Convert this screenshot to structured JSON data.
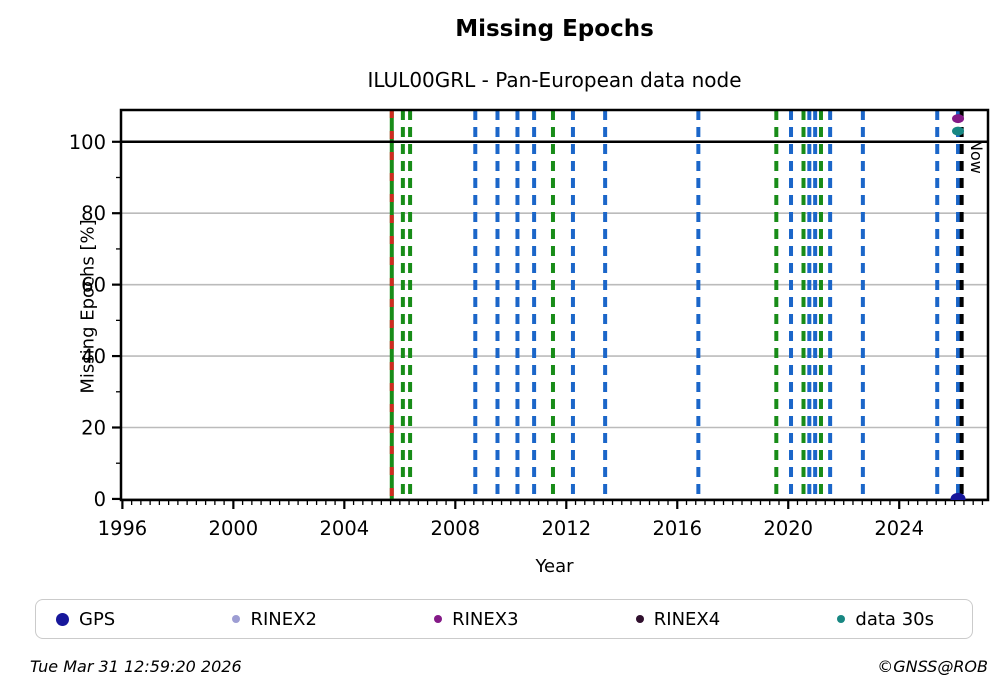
{
  "title": "Missing Epochs",
  "subtitle": "ILUL00GRL - Pan-European data node",
  "now_label": "Now",
  "footer": {
    "timestamp": "Tue Mar 31 12:59:20 2026",
    "credit": "©GNSS@ROB"
  },
  "legend": {
    "items": [
      {
        "label": "GPS",
        "color": "#17179b",
        "dot_size": 13
      },
      {
        "label": "RINEX2",
        "color": "#9d9dd3",
        "dot_size": 8
      },
      {
        "label": "RINEX3",
        "color": "#841a87",
        "dot_size": 8
      },
      {
        "label": "RINEX4",
        "color": "#30102e",
        "dot_size": 8
      },
      {
        "label": "data 30s",
        "color": "#188782",
        "dot_size": 8
      }
    ]
  },
  "chart_data": {
    "type": "scatter",
    "title": "Missing Epochs",
    "subtitle": "ILUL00GRL - Pan-European data node",
    "xlabel": "Year",
    "ylabel": "Missing Epochs [%]",
    "xlim": [
      1995.95,
      2027.2
    ],
    "ylim": [
      -0.3,
      108.9
    ],
    "xticks": [
      1996,
      2000,
      2004,
      2008,
      2012,
      2016,
      2020,
      2024
    ],
    "yticks": [
      0,
      20,
      40,
      60,
      80,
      100
    ],
    "x_minor_step": 0.33333,
    "y_minor_ticks": [
      10,
      30,
      50,
      70,
      90
    ],
    "grid_y": [
      0,
      20,
      40,
      60,
      80
    ],
    "grid_color": "#bbbbbb",
    "hline": {
      "y": 100,
      "color": "#000000"
    },
    "now_line": {
      "x": 2026.25,
      "label": "Now",
      "color": "#000000",
      "style": "dashed"
    },
    "vlines": [
      {
        "x": 2005.71,
        "color": "#188c18",
        "style": "solid",
        "overlay_color": "#cf2b20",
        "overlay_style": "dashed"
      },
      {
        "x": 2006.11,
        "color": "#188c18",
        "style": "dashed"
      },
      {
        "x": 2006.37,
        "color": "#188c18",
        "style": "dashed"
      },
      {
        "x": 2008.72,
        "color": "#1b66c9",
        "style": "dashed"
      },
      {
        "x": 2009.52,
        "color": "#1b66c9",
        "style": "dashed"
      },
      {
        "x": 2010.24,
        "color": "#1b66c9",
        "style": "dashed"
      },
      {
        "x": 2010.84,
        "color": "#1b66c9",
        "style": "dashed"
      },
      {
        "x": 2011.52,
        "color": "#188c18",
        "style": "dashed"
      },
      {
        "x": 2012.24,
        "color": "#1b66c9",
        "style": "dashed"
      },
      {
        "x": 2013.4,
        "color": "#1b66c9",
        "style": "dashed"
      },
      {
        "x": 2016.76,
        "color": "#1b66c9",
        "style": "dashed"
      },
      {
        "x": 2019.57,
        "color": "#188c18",
        "style": "dashed"
      },
      {
        "x": 2020.1,
        "color": "#1b66c9",
        "style": "dashed"
      },
      {
        "x": 2020.55,
        "color": "#188c18",
        "style": "dashed"
      },
      {
        "x": 2020.76,
        "color": "#1b66c9",
        "style": "dashed"
      },
      {
        "x": 2020.97,
        "color": "#1b66c9",
        "style": "dashed"
      },
      {
        "x": 2021.18,
        "color": "#188c18",
        "style": "dashed"
      },
      {
        "x": 2021.51,
        "color": "#1b66c9",
        "style": "dashed"
      },
      {
        "x": 2022.69,
        "color": "#1b66c9",
        "style": "dashed"
      },
      {
        "x": 2025.37,
        "color": "#1b66c9",
        "style": "dashed"
      },
      {
        "x": 2026.12,
        "color": "#1b66c9",
        "style": "dashed"
      }
    ],
    "points": [
      {
        "x": 2026.12,
        "y": 106.5,
        "series": "RINEX3",
        "color": "#841a87",
        "rx": 6,
        "ry": 4.5
      },
      {
        "x": 2026.12,
        "y": 103.0,
        "series": "data 30s",
        "color": "#188782",
        "rx": 6,
        "ry": 4.5
      },
      {
        "x": 2026.12,
        "y": 0.0,
        "series": "GPS",
        "color": "#17179b",
        "rx": 7.5,
        "ry": 6
      }
    ]
  }
}
